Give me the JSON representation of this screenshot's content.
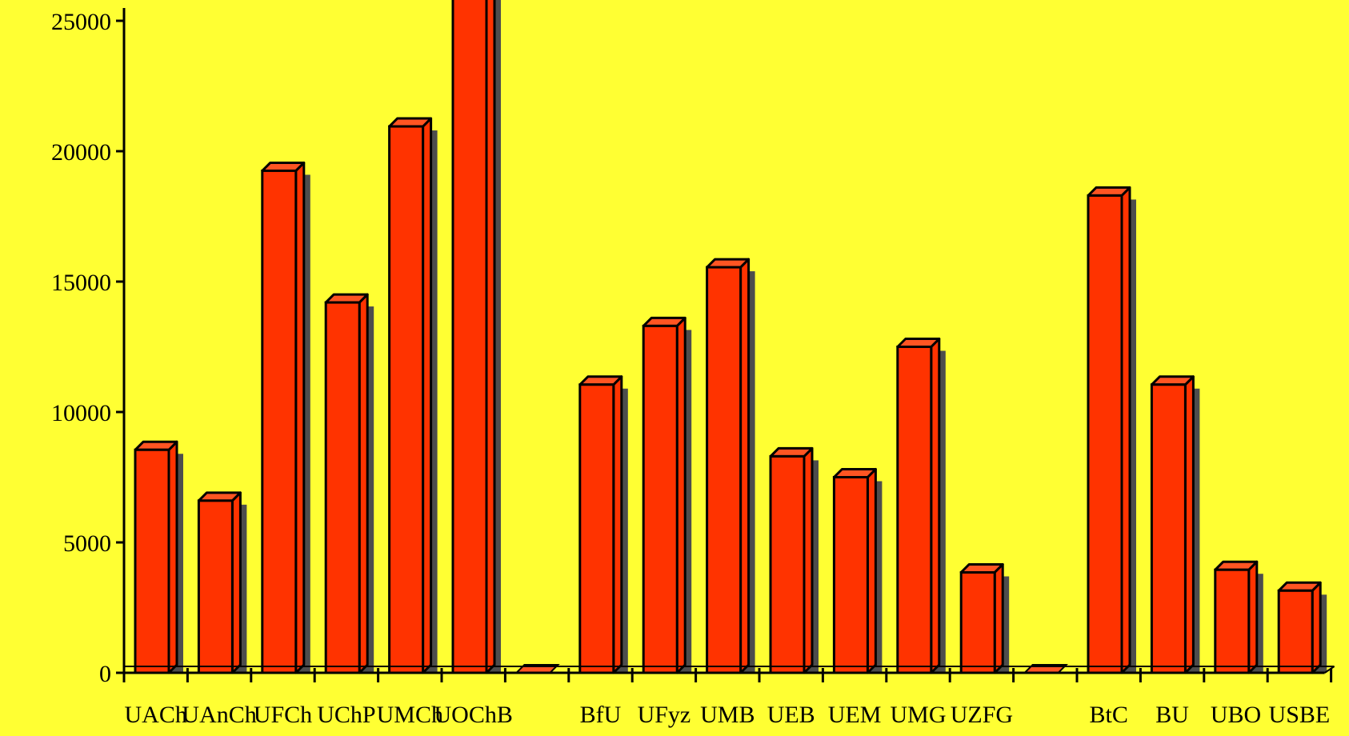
{
  "colors": {
    "background": "#FFFF33",
    "bar_front": "#FF3300",
    "bar_side": "#FF3300",
    "bar_top": "#FF5522",
    "shadow": "#4D4D4D",
    "axis": "#000000"
  },
  "chart_data": {
    "type": "bar",
    "style": "3d-bar-with-drop-shadow",
    "title": "",
    "xlabel": "",
    "ylabel": "",
    "ylim": [
      0,
      25000
    ],
    "yticks": [
      "0",
      "5000",
      "10000",
      "15000",
      "20000",
      "25000"
    ],
    "ytick_values": [
      0,
      5000,
      10000,
      15000,
      20000,
      25000
    ],
    "grid": false,
    "legend": "none",
    "categories": [
      "UACh",
      "UAnCh",
      "UFCh",
      "UChP",
      "UMCh",
      "UOChB",
      "",
      "BfU",
      "UFyz",
      "UMB",
      "UEB",
      "UEM",
      "UMG",
      "UZFG",
      "",
      "BtC",
      "BU",
      "UBO",
      "USBE"
    ],
    "values": [
      8550,
      6600,
      19250,
      14200,
      20950,
      26000,
      0,
      11050,
      13300,
      15550,
      8300,
      7500,
      12500,
      3850,
      0,
      18300,
      11050,
      3950,
      3150
    ]
  }
}
